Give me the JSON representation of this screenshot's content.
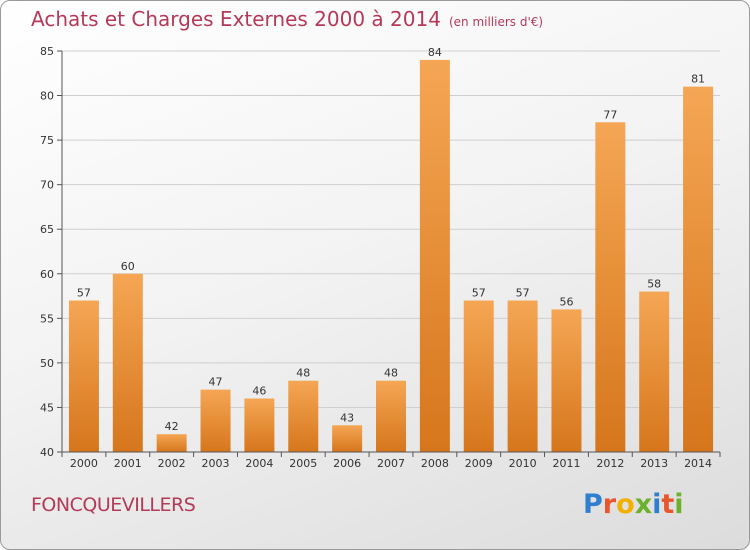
{
  "header": {
    "title": "Achats et Charges Externes 2000 à 2014",
    "subtitle": "(en milliers d'€)"
  },
  "footer": {
    "commune": "FONCQUEVILLERS",
    "logo": "Proxiti"
  },
  "colors": {
    "bar_light": "#f5a654",
    "bar_dark": "#d6761c",
    "title": "#b53a5a"
  },
  "chart_data": {
    "type": "bar",
    "title": "Achats et Charges Externes 2000 à 2014",
    "subtitle": "(en milliers d'€)",
    "categories": [
      "2000",
      "2001",
      "2002",
      "2003",
      "2004",
      "2005",
      "2006",
      "2007",
      "2008",
      "2009",
      "2010",
      "2011",
      "2012",
      "2013",
      "2014"
    ],
    "values": [
      57,
      60,
      42,
      47,
      46,
      48,
      43,
      48,
      84,
      57,
      57,
      56,
      77,
      58,
      81
    ],
    "ylim": [
      40,
      85
    ],
    "yticks": [
      40,
      45,
      50,
      55,
      60,
      65,
      70,
      75,
      80,
      85
    ],
    "grid": true,
    "data_labels": true
  }
}
